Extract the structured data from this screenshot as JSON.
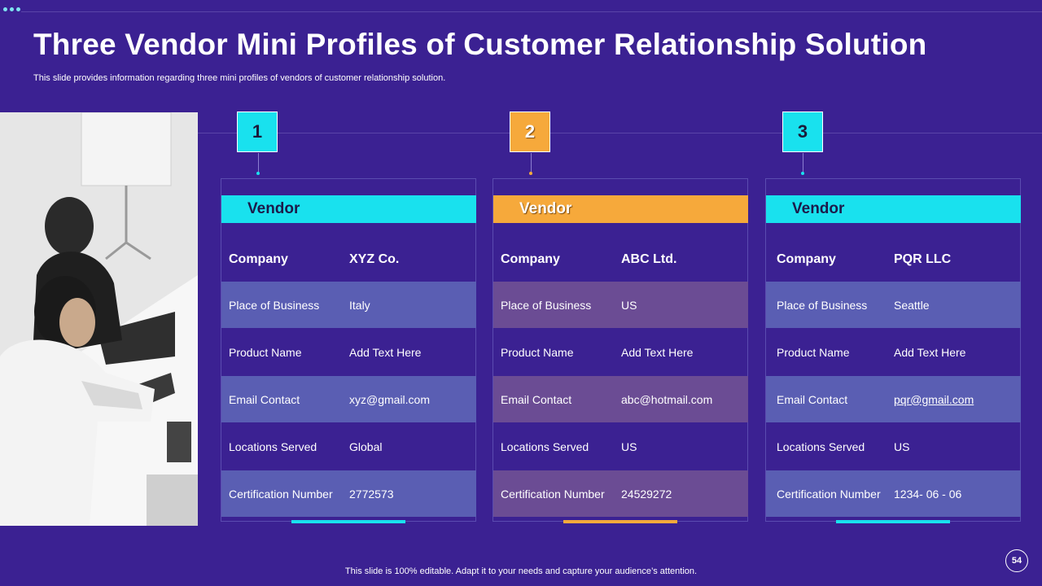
{
  "slide": {
    "title": "Three Vendor Mini Profiles of Customer Relationship Solution",
    "subtitle": "This slide provides information regarding three mini profiles of vendors of customer  relationship solution.",
    "footer": "This slide is 100% editable. Adapt it to your needs and capture your audience’s attention.",
    "page_number": "54"
  },
  "colors": {
    "background": "#3b2192",
    "cyan": "#19e1ee",
    "orange": "#f6a93b"
  },
  "cards": [
    {
      "number": "1",
      "accent": "cyan",
      "header": "Vendor",
      "company_label": "Company",
      "company_value": "XYZ Co.",
      "rows": [
        {
          "label": "Place of Business",
          "value": "Italy"
        },
        {
          "label": "Product  Name",
          "value": "Add Text Here"
        },
        {
          "label": "Email Contact",
          "value": "xyz@gmail.com"
        },
        {
          "label": "Locations Served",
          "value": "Global"
        },
        {
          "label": "Certification Number",
          "value": "2772573"
        }
      ]
    },
    {
      "number": "2",
      "accent": "orange",
      "header": "Vendor",
      "company_label": "Company",
      "company_value": "ABC Ltd.",
      "rows": [
        {
          "label": "Place of Business",
          "value": "US"
        },
        {
          "label": "Product  Name",
          "value": "Add Text Here"
        },
        {
          "label": "Email Contact",
          "value": "abc@hotmail.com"
        },
        {
          "label": "Locations Served",
          "value": "US"
        },
        {
          "label": "Certification Number",
          "value": "24529272"
        }
      ]
    },
    {
      "number": "3",
      "accent": "cyan",
      "header": "Vendor",
      "company_label": "Company",
      "company_value": "PQR LLC",
      "rows": [
        {
          "label": "Place of Business",
          "value": "Seattle"
        },
        {
          "label": "Product  Name",
          "value": "Add Text Here"
        },
        {
          "label": "Email Contact",
          "value": "pqr@gmail.com"
        },
        {
          "label": "Locations Served",
          "value": "US"
        },
        {
          "label": "Certification Number",
          "value": "1234- 06 - 06"
        }
      ]
    }
  ]
}
